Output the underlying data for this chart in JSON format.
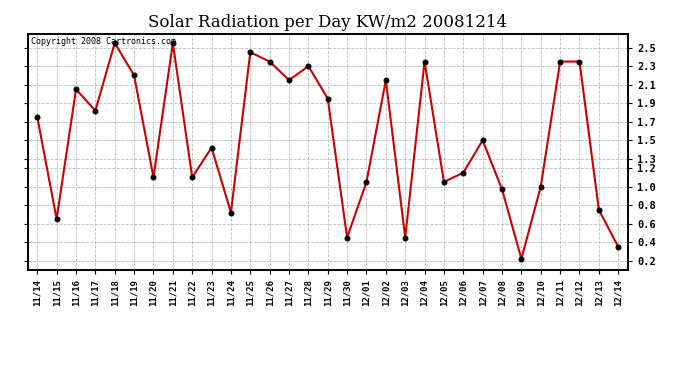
{
  "title": "Solar Radiation per Day KW/m2 20081214",
  "copyright_text": "Copyright 2008 Cartronics.com",
  "labels": [
    "11/14",
    "11/15",
    "11/16",
    "11/17",
    "11/18",
    "11/19",
    "11/20",
    "11/21",
    "11/22",
    "11/23",
    "11/24",
    "11/25",
    "11/26",
    "11/27",
    "11/28",
    "11/29",
    "11/30",
    "12/01",
    "12/02",
    "12/03",
    "12/04",
    "12/05",
    "12/06",
    "12/07",
    "12/08",
    "12/09",
    "12/10",
    "12/11",
    "12/12",
    "12/13",
    "12/14"
  ],
  "values": [
    1.75,
    0.65,
    2.05,
    1.82,
    2.55,
    2.2,
    1.1,
    2.55,
    1.1,
    1.42,
    0.72,
    2.45,
    2.35,
    2.15,
    2.3,
    1.95,
    0.45,
    1.05,
    2.15,
    0.45,
    2.35,
    1.05,
    1.15,
    1.5,
    0.97,
    0.22,
    1.0,
    2.35,
    2.35,
    0.75,
    0.35
  ],
  "line_color": "#cc0000",
  "marker_facecolor": "#000000",
  "marker_edgecolor": "#000000",
  "bg_color": "#ffffff",
  "plot_bg_color": "#ffffff",
  "grid_color": "#bbbbbb",
  "title_fontsize": 12,
  "ylim": [
    0.1,
    2.65
  ],
  "yticks": [
    0.2,
    0.4,
    0.6,
    0.8,
    1.0,
    1.2,
    1.3,
    1.5,
    1.7,
    1.9,
    2.1,
    2.3,
    2.5
  ],
  "ytick_labels": [
    "0.2",
    "0.4",
    "0.6",
    "0.8",
    "1.0",
    "1.2",
    "1.3",
    "1.5",
    "1.7",
    "1.9",
    "2.1",
    "2.3",
    "2.5"
  ]
}
